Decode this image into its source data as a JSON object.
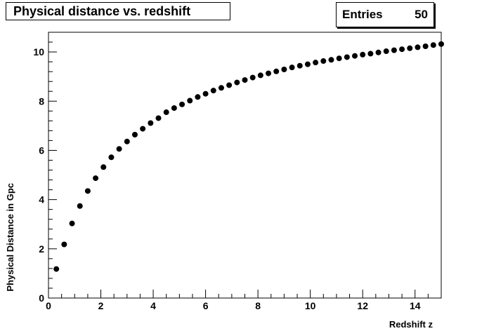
{
  "chart_data": {
    "type": "scatter",
    "title": "Physical distance vs. redshift",
    "xlabel": "Redshift z",
    "ylabel": "Physical Distance in Gpc",
    "xlim": [
      0,
      15
    ],
    "ylim": [
      0,
      10.8
    ],
    "x_ticks": [
      "0",
      "2",
      "4",
      "6",
      "8",
      "10",
      "12",
      "14"
    ],
    "y_ticks": [
      "0",
      "2",
      "4",
      "6",
      "8",
      "10"
    ],
    "stats": {
      "label": "Entries",
      "value": "50"
    },
    "marker_color": "#000000",
    "grid": false,
    "points": [
      [
        0.3,
        1.18
      ],
      [
        0.6,
        2.18
      ],
      [
        0.9,
        3.03
      ],
      [
        1.2,
        3.74
      ],
      [
        1.5,
        4.35
      ],
      [
        1.8,
        4.87
      ],
      [
        2.1,
        5.32
      ],
      [
        2.4,
        5.72
      ],
      [
        2.7,
        6.06
      ],
      [
        3.0,
        6.36
      ],
      [
        3.3,
        6.64
      ],
      [
        3.6,
        6.88
      ],
      [
        3.9,
        7.11
      ],
      [
        4.2,
        7.31
      ],
      [
        4.5,
        7.55
      ],
      [
        4.8,
        7.72
      ],
      [
        5.1,
        7.87
      ],
      [
        5.4,
        8.02
      ],
      [
        5.7,
        8.17
      ],
      [
        6.0,
        8.3
      ],
      [
        6.3,
        8.43
      ],
      [
        6.6,
        8.54
      ],
      [
        6.9,
        8.65
      ],
      [
        7.2,
        8.76
      ],
      [
        7.5,
        8.86
      ],
      [
        7.8,
        8.96
      ],
      [
        8.1,
        9.05
      ],
      [
        8.4,
        9.13
      ],
      [
        8.7,
        9.21
      ],
      [
        9.0,
        9.29
      ],
      [
        9.3,
        9.37
      ],
      [
        9.6,
        9.44
      ],
      [
        9.9,
        9.5
      ],
      [
        10.2,
        9.57
      ],
      [
        10.5,
        9.63
      ],
      [
        10.8,
        9.68
      ],
      [
        11.1,
        9.74
      ],
      [
        11.4,
        9.79
      ],
      [
        11.7,
        9.84
      ],
      [
        12.0,
        9.89
      ],
      [
        12.3,
        9.93
      ],
      [
        12.6,
        9.98
      ],
      [
        12.9,
        10.03
      ],
      [
        13.2,
        10.07
      ],
      [
        13.5,
        10.11
      ],
      [
        13.8,
        10.15
      ],
      [
        14.1,
        10.19
      ],
      [
        14.4,
        10.23
      ],
      [
        14.7,
        10.28
      ],
      [
        15.0,
        10.32
      ]
    ]
  }
}
